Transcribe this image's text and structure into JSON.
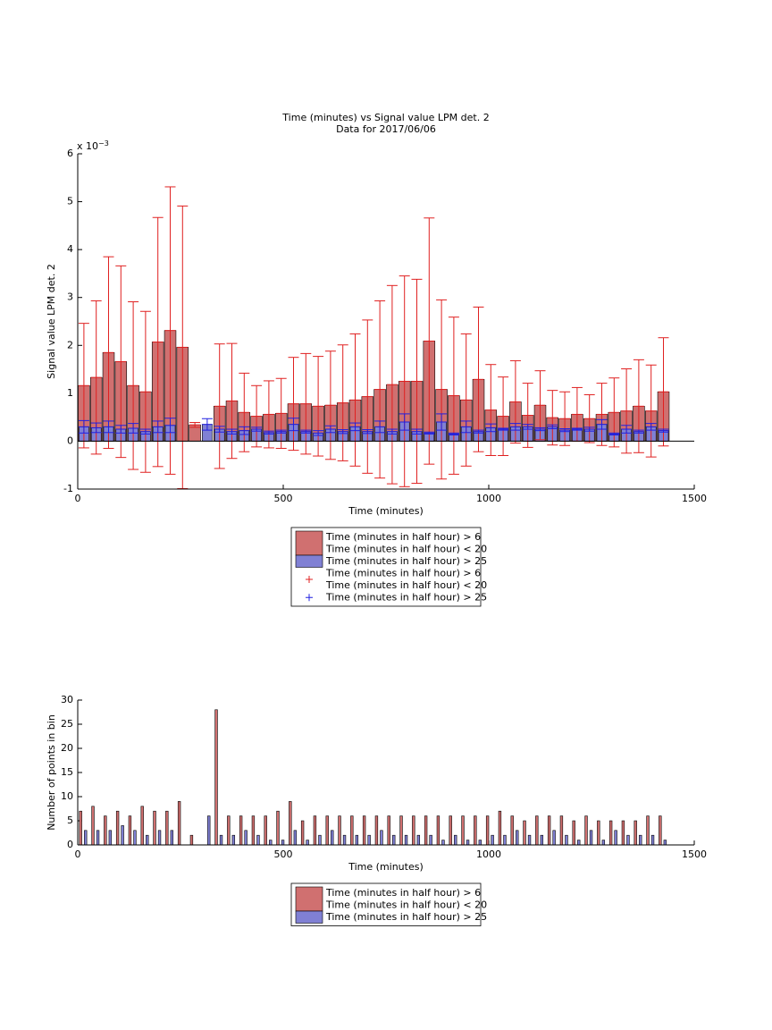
{
  "chart_data": [
    {
      "type": "bar",
      "title_lines": [
        "Time (minutes) vs Signal value LPM det. 2",
        "Data for 2017/06/06"
      ],
      "y_scale_base": "x 10",
      "y_scale_exponent": "−3",
      "xlabel": "Time (minutes)",
      "ylabel": "Signal value LPM det. 2",
      "x": [
        15,
        45,
        75,
        105,
        135,
        165,
        195,
        225,
        255,
        285,
        315,
        345,
        375,
        405,
        435,
        465,
        495,
        525,
        555,
        585,
        615,
        645,
        675,
        705,
        735,
        765,
        795,
        825,
        855,
        885,
        915,
        945,
        975,
        1005,
        1035,
        1065,
        1095,
        1125,
        1155,
        1185,
        1215,
        1245,
        1275,
        1305,
        1335,
        1365,
        1395,
        1425
      ],
      "xlim": [
        0,
        1500
      ],
      "xticks": [
        0,
        500,
        1000,
        1500
      ],
      "ylim": [
        -1,
        6
      ],
      "yticks": [
        -1,
        0,
        1,
        2,
        3,
        4,
        5,
        6
      ],
      "series": [
        {
          "name_lines": [
            "Time (minutes in half hour) > 6",
            "Time (minutes in half hour) < 20"
          ],
          "color": "#d07070",
          "error_color": "#e02020",
          "values": [
            1.16,
            1.33,
            1.85,
            1.66,
            1.16,
            1.03,
            2.07,
            2.31,
            1.96,
            0.34,
            null,
            0.73,
            0.84,
            0.6,
            0.52,
            0.56,
            0.58,
            0.78,
            0.78,
            0.73,
            0.75,
            0.8,
            0.86,
            0.93,
            1.08,
            1.18,
            1.25,
            1.25,
            2.09,
            1.08,
            0.95,
            0.86,
            1.29,
            0.65,
            0.52,
            0.82,
            0.54,
            0.75,
            0.49,
            0.47,
            0.56,
            0.47,
            0.56,
            0.6,
            0.63,
            0.73,
            0.63,
            1.03
          ],
          "errors": [
            1.3,
            1.6,
            2.0,
            2.0,
            1.75,
            1.68,
            2.6,
            3.0,
            2.95,
            0.05,
            null,
            1.3,
            1.2,
            0.82,
            0.64,
            0.7,
            0.73,
            0.97,
            1.05,
            1.04,
            1.13,
            1.21,
            1.38,
            1.6,
            1.85,
            2.07,
            2.2,
            2.13,
            2.57,
            1.87,
            1.64,
            1.38,
            1.51,
            0.95,
            0.82,
            0.86,
            0.67,
            0.72,
            0.57,
            0.56,
            0.56,
            0.5,
            0.65,
            0.72,
            0.88,
            0.97,
            0.96,
            1.13
          ]
        },
        {
          "name_lines": [
            "Time (minutes in half hour) > 25"
          ],
          "color": "#8080d4",
          "error_color": "#2020e0",
          "values": [
            0.3,
            0.28,
            0.3,
            0.25,
            0.27,
            0.2,
            0.3,
            0.33,
            null,
            null,
            0.35,
            0.25,
            0.2,
            0.22,
            0.25,
            0.18,
            0.2,
            0.35,
            0.2,
            0.17,
            0.25,
            0.2,
            0.3,
            0.2,
            0.3,
            0.2,
            0.4,
            0.2,
            0.17,
            0.4,
            0.15,
            0.3,
            0.2,
            0.28,
            0.25,
            0.3,
            0.3,
            0.25,
            0.3,
            0.23,
            0.25,
            0.25,
            0.35,
            0.15,
            0.25,
            0.2,
            0.3,
            0.22
          ],
          "errors": [
            0.13,
            0.1,
            0.12,
            0.08,
            0.1,
            0.05,
            0.12,
            0.15,
            null,
            null,
            0.12,
            0.06,
            0.05,
            0.08,
            0.04,
            0.03,
            0.03,
            0.13,
            0.03,
            0.05,
            0.07,
            0.04,
            0.08,
            0.04,
            0.12,
            0.05,
            0.17,
            0.05,
            0.02,
            0.17,
            0.02,
            0.12,
            0.03,
            0.08,
            0.02,
            0.07,
            0.05,
            0.03,
            0.04,
            0.03,
            0.02,
            0.04,
            0.1,
            0.02,
            0.08,
            0.03,
            0.07,
            0.03
          ]
        }
      ]
    },
    {
      "type": "bar",
      "xlabel": "Time (minutes)",
      "ylabel": "Number of points in bin",
      "x": [
        15,
        45,
        75,
        105,
        135,
        165,
        195,
        225,
        255,
        285,
        315,
        345,
        375,
        405,
        435,
        465,
        495,
        525,
        555,
        585,
        615,
        645,
        675,
        705,
        735,
        765,
        795,
        825,
        855,
        885,
        915,
        945,
        975,
        1005,
        1035,
        1065,
        1095,
        1125,
        1155,
        1185,
        1215,
        1245,
        1275,
        1305,
        1335,
        1365,
        1395,
        1425
      ],
      "xlim": [
        0,
        1500
      ],
      "xticks": [
        0,
        500,
        1000,
        1500
      ],
      "ylim": [
        0,
        30
      ],
      "yticks": [
        0,
        5,
        10,
        15,
        20,
        25,
        30
      ],
      "series": [
        {
          "name_lines": [
            "Time (minutes in half hour) > 6",
            "Time (minutes in half hour) < 20"
          ],
          "color": "#d07070",
          "values": [
            7,
            8,
            6,
            7,
            6,
            8,
            7,
            7,
            9,
            2,
            null,
            28,
            6,
            6,
            6,
            6,
            7,
            9,
            5,
            6,
            6,
            6,
            6,
            6,
            6,
            6,
            6,
            6,
            6,
            6,
            6,
            6,
            6,
            6,
            7,
            6,
            5,
            6,
            6,
            6,
            5,
            6,
            5,
            5,
            5,
            5,
            6,
            6
          ]
        },
        {
          "name_lines": [
            "Time (minutes in half hour) > 25"
          ],
          "color": "#8080d4",
          "values": [
            3,
            3,
            3,
            4,
            3,
            2,
            3,
            3,
            null,
            null,
            6,
            2,
            2,
            3,
            2,
            1,
            1,
            3,
            1,
            2,
            3,
            2,
            2,
            2,
            3,
            2,
            2,
            2,
            2,
            1,
            2,
            1,
            1,
            2,
            2,
            3,
            2,
            2,
            3,
            2,
            1,
            3,
            1,
            3,
            2,
            2,
            2,
            1
          ]
        }
      ]
    }
  ]
}
